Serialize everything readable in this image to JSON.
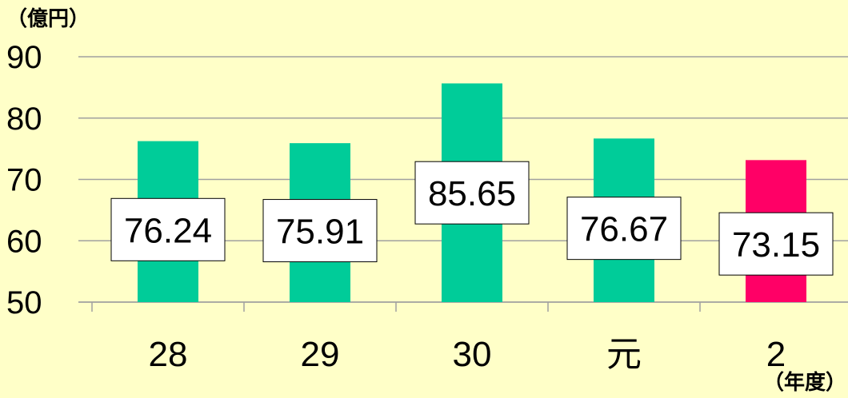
{
  "chart_data": {
    "type": "bar",
    "y_unit": "（億円）",
    "x_unit": "（年度）",
    "categories": [
      "28",
      "29",
      "30",
      "元",
      "2"
    ],
    "values": [
      76.24,
      75.91,
      85.65,
      76.67,
      73.15
    ],
    "data_labels": [
      "76.24",
      "75.91",
      "85.65",
      "76.67",
      "73.15"
    ],
    "y_ticks": [
      "90",
      "80",
      "70",
      "60",
      "50"
    ],
    "ylim": [
      50,
      90
    ],
    "grid": true,
    "colors": {
      "background": "#ffffc8",
      "bar": "#00cc99",
      "highlight_bar": "#ff0066",
      "gridline": "#a0a0a0"
    },
    "highlight_index": 4
  }
}
